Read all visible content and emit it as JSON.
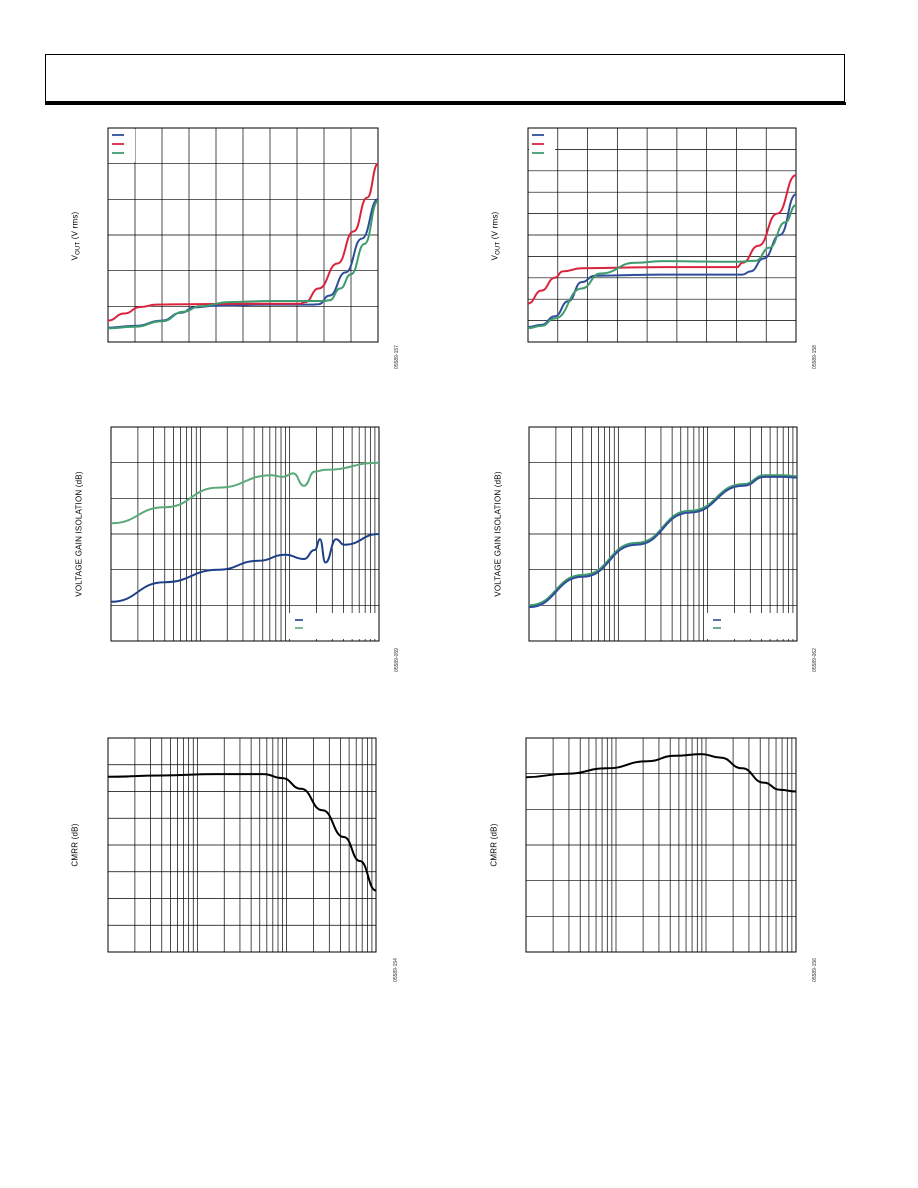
{
  "header": {
    "title": ""
  },
  "chart_data": [
    {
      "id": "vout-1",
      "type": "line",
      "ylabel": "V_OUT (V rms)",
      "ylabel_main": "V",
      "ylabel_sub": "OUT",
      "ylabel_rest": " (V rms)",
      "fig_code": "05589-157",
      "series": [
        {
          "color": "#2f4d9a",
          "values": [
            [
              0,
              0.4
            ],
            [
              0.1,
              0.45
            ],
            [
              0.2,
              0.6
            ],
            [
              0.27,
              0.82
            ],
            [
              0.32,
              0.97
            ],
            [
              0.4,
              1.02
            ],
            [
              0.6,
              1.05
            ],
            [
              0.76,
              1.05
            ],
            [
              0.78,
              1.06
            ],
            [
              0.82,
              1.3
            ],
            [
              0.88,
              1.95
            ],
            [
              0.94,
              2.9
            ],
            [
              1,
              4.0
            ]
          ]
        },
        {
          "color": "#d9243d",
          "values": [
            [
              0,
              0.6
            ],
            [
              0.06,
              0.8
            ],
            [
              0.12,
              0.98
            ],
            [
              0.18,
              1.05
            ],
            [
              0.3,
              1.06
            ],
            [
              0.5,
              1.07
            ],
            [
              0.71,
              1.07
            ],
            [
              0.73,
              1.12
            ],
            [
              0.78,
              1.5
            ],
            [
              0.85,
              2.2
            ],
            [
              0.91,
              3.1
            ],
            [
              0.96,
              4.05
            ],
            [
              1,
              5.0
            ]
          ]
        },
        {
          "color": "#3e9b6d",
          "values": [
            [
              0,
              0.38
            ],
            [
              0.1,
              0.43
            ],
            [
              0.2,
              0.58
            ],
            [
              0.28,
              0.85
            ],
            [
              0.34,
              1.0
            ],
            [
              0.45,
              1.12
            ],
            [
              0.6,
              1.15
            ],
            [
              0.8,
              1.15
            ],
            [
              0.82,
              1.17
            ],
            [
              0.86,
              1.5
            ],
            [
              0.9,
              1.9
            ],
            [
              0.95,
              2.75
            ],
            [
              1,
              3.95
            ]
          ]
        }
      ],
      "ylim": [
        0,
        6
      ],
      "xlim": [
        0,
        1
      ],
      "xdiv": 10,
      "ydiv": 6,
      "xscale": "linear",
      "legend": "top-left",
      "legend_swatches": 3
    },
    {
      "id": "vout-2",
      "type": "line",
      "ylabel": "V_OUT (V rms)",
      "ylabel_main": "V",
      "ylabel_sub": "OUT",
      "ylabel_rest": " (V rms)",
      "fig_code": "05589-158",
      "series": [
        {
          "color": "#2f4d9a",
          "values": [
            [
              0,
              0.7
            ],
            [
              0.05,
              0.8
            ],
            [
              0.1,
              1.2
            ],
            [
              0.15,
              1.9
            ],
            [
              0.2,
              2.8
            ],
            [
              0.25,
              3.1
            ],
            [
              0.5,
              3.15
            ],
            [
              0.8,
              3.15
            ],
            [
              0.83,
              3.3
            ],
            [
              0.88,
              3.9
            ],
            [
              0.94,
              5.0
            ],
            [
              1,
              6.9
            ]
          ]
        },
        {
          "color": "#d9243d",
          "values": [
            [
              0,
              1.8
            ],
            [
              0.05,
              2.4
            ],
            [
              0.1,
              3.0
            ],
            [
              0.13,
              3.3
            ],
            [
              0.2,
              3.45
            ],
            [
              0.5,
              3.5
            ],
            [
              0.78,
              3.5
            ],
            [
              0.8,
              3.7
            ],
            [
              0.86,
              4.5
            ],
            [
              0.93,
              6.0
            ],
            [
              1,
              7.8
            ]
          ]
        },
        {
          "color": "#3e9b6d",
          "values": [
            [
              0,
              0.65
            ],
            [
              0.05,
              0.75
            ],
            [
              0.1,
              1.1
            ],
            [
              0.2,
              2.5
            ],
            [
              0.27,
              3.2
            ],
            [
              0.4,
              3.7
            ],
            [
              0.5,
              3.78
            ],
            [
              0.78,
              3.75
            ],
            [
              0.85,
              3.8
            ],
            [
              0.9,
              4.4
            ],
            [
              0.96,
              5.6
            ],
            [
              1,
              6.4
            ]
          ]
        }
      ],
      "ylim": [
        0,
        10
      ],
      "xlim": [
        0,
        1
      ],
      "xdiv": 9,
      "ydiv": 10,
      "xscale": "linear",
      "legend": "top-left",
      "legend_swatches": 3
    },
    {
      "id": "isolation-1",
      "type": "line",
      "ylabel": "VOLTAGE GAIN ISOLATION (dB)",
      "fig_code": "05589-059",
      "series": [
        {
          "color": "#5aa97b",
          "values": [
            [
              0,
              3.3
            ],
            [
              0.2,
              3.75
            ],
            [
              0.4,
              4.3
            ],
            [
              0.6,
              4.65
            ],
            [
              0.64,
              4.6
            ],
            [
              0.68,
              4.7
            ],
            [
              0.72,
              4.35
            ],
            [
              0.76,
              4.75
            ],
            [
              0.8,
              4.8
            ],
            [
              1,
              5.0
            ]
          ]
        },
        {
          "color": "#1d3f88",
          "values": [
            [
              0,
              1.1
            ],
            [
              0.2,
              1.65
            ],
            [
              0.4,
              2.0
            ],
            [
              0.55,
              2.25
            ],
            [
              0.65,
              2.42
            ],
            [
              0.72,
              2.3
            ],
            [
              0.76,
              2.55
            ],
            [
              0.78,
              2.85
            ],
            [
              0.8,
              2.2
            ],
            [
              0.84,
              2.85
            ],
            [
              0.87,
              2.7
            ],
            [
              1,
              3.0
            ]
          ]
        }
      ],
      "ylim": [
        0,
        6
      ],
      "xlim": [
        0,
        1
      ],
      "xdiv": 0,
      "ydiv": 6,
      "xscale": "log",
      "legend": "bottom-right",
      "legend_swatches": 2
    },
    {
      "id": "isolation-2",
      "type": "line",
      "ylabel": "VOLTAGE GAIN ISOLATION (dB)",
      "fig_code": "05589-062",
      "series": [
        {
          "color": "#3e9b6d",
          "values": [
            [
              0,
              1.0
            ],
            [
              0.2,
              1.85
            ],
            [
              0.4,
              2.75
            ],
            [
              0.6,
              3.65
            ],
            [
              0.8,
              4.4
            ],
            [
              0.88,
              4.65
            ],
            [
              0.95,
              4.65
            ],
            [
              1,
              4.62
            ]
          ]
        },
        {
          "color": "#2f4d9a",
          "values": [
            [
              0,
              0.95
            ],
            [
              0.2,
              1.8
            ],
            [
              0.4,
              2.7
            ],
            [
              0.6,
              3.6
            ],
            [
              0.8,
              4.35
            ],
            [
              0.88,
              4.6
            ],
            [
              0.95,
              4.6
            ],
            [
              1,
              4.58
            ]
          ]
        }
      ],
      "ylim": [
        0,
        6
      ],
      "xlim": [
        0,
        1
      ],
      "xdiv": 0,
      "ydiv": 6,
      "xscale": "log",
      "legend": "bottom-right",
      "legend_swatches": 2
    },
    {
      "id": "cmrr-1",
      "type": "line",
      "ylabel": "CMRR (dB)",
      "fig_code": "05589-154",
      "series": [
        {
          "color": "#000000",
          "values": [
            [
              0,
              6.55
            ],
            [
              0.2,
              6.6
            ],
            [
              0.4,
              6.65
            ],
            [
              0.58,
              6.65
            ],
            [
              0.65,
              6.5
            ],
            [
              0.72,
              6.1
            ],
            [
              0.8,
              5.3
            ],
            [
              0.88,
              4.3
            ],
            [
              0.94,
              3.4
            ],
            [
              1,
              2.3
            ]
          ]
        }
      ],
      "ylim": [
        0,
        8
      ],
      "xlim": [
        0,
        1
      ],
      "xdiv": 0,
      "ydiv": 8,
      "xscale": "log",
      "legend": "none",
      "legend_swatches": 0
    },
    {
      "id": "cmrr-2",
      "type": "line",
      "ylabel": "CMRR (dB)",
      "fig_code": "05589-156",
      "series": [
        {
          "color": "#000000",
          "values": [
            [
              0,
              4.9
            ],
            [
              0.15,
              5.0
            ],
            [
              0.3,
              5.15
            ],
            [
              0.45,
              5.35
            ],
            [
              0.55,
              5.5
            ],
            [
              0.65,
              5.55
            ],
            [
              0.72,
              5.45
            ],
            [
              0.8,
              5.15
            ],
            [
              0.88,
              4.75
            ],
            [
              0.94,
              4.55
            ],
            [
              1,
              4.5
            ]
          ]
        }
      ],
      "ylim": [
        0,
        6
      ],
      "xlim": [
        0,
        1
      ],
      "xdiv": 0,
      "ydiv": 6,
      "xscale": "log",
      "legend": "none",
      "legend_swatches": 0
    }
  ]
}
